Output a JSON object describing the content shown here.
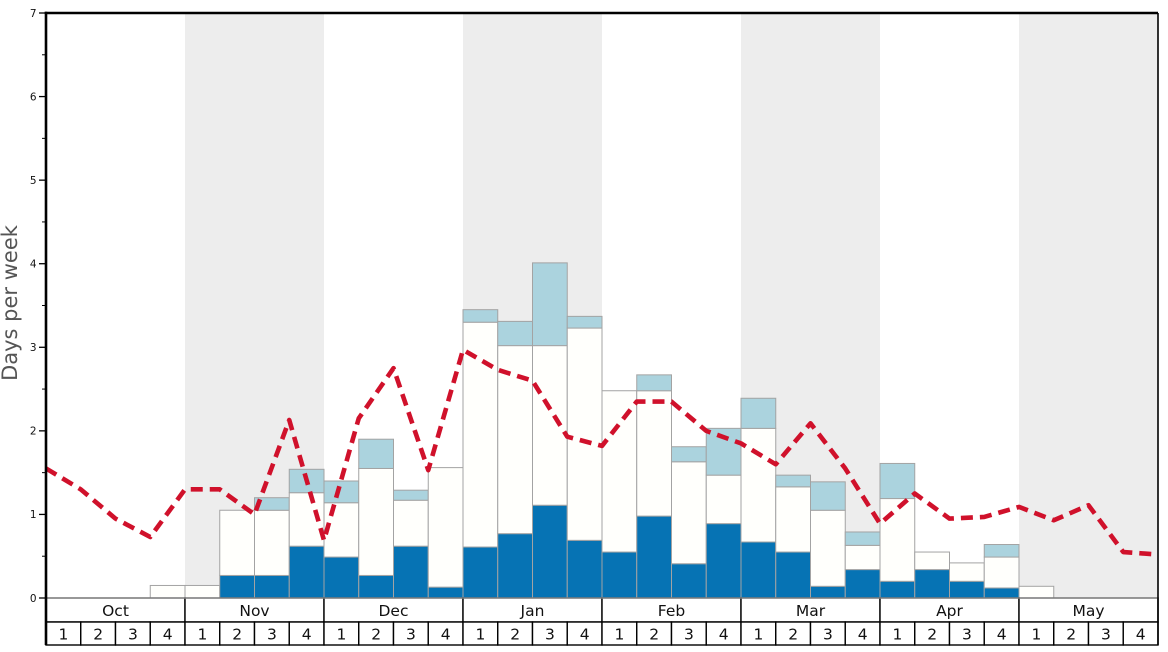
{
  "chart_data": {
    "type": "bar",
    "subtype": "stacked-bars-with-dashed-line-overlay",
    "title": "",
    "xlabel": "",
    "ylabel": "Days per week",
    "ylim": [
      0,
      7
    ],
    "y_major_ticks": [
      0,
      1,
      2,
      3,
      4,
      5,
      6,
      7
    ],
    "y_minor_tick_step": 0.5,
    "grid": "off",
    "legend": "none visible",
    "months": [
      "Oct",
      "Nov",
      "Dec",
      "Jan",
      "Feb",
      "Mar",
      "Apr",
      "May"
    ],
    "week_labels": [
      "1",
      "2",
      "3",
      "4"
    ],
    "shaded_months": [
      "Nov",
      "Jan",
      "Mar",
      "May"
    ],
    "stacked_bars": {
      "description": "One stacked bar per week; segment heights in days per week, stacked bottom-to-top as dark_blue, white, light_blue.",
      "segment_order": [
        "dark_blue",
        "white",
        "light_blue"
      ],
      "weeks": [
        {
          "month": "Oct",
          "week": 1,
          "dark_blue": 0,
          "white": 0,
          "light_blue": 0
        },
        {
          "month": "Oct",
          "week": 2,
          "dark_blue": 0,
          "white": 0,
          "light_blue": 0
        },
        {
          "month": "Oct",
          "week": 3,
          "dark_blue": 0,
          "white": 0,
          "light_blue": 0
        },
        {
          "month": "Oct",
          "week": 4,
          "dark_blue": 0,
          "white": 0.15,
          "light_blue": 0
        },
        {
          "month": "Nov",
          "week": 1,
          "dark_blue": 0,
          "white": 0.15,
          "light_blue": 0
        },
        {
          "month": "Nov",
          "week": 2,
          "dark_blue": 0.27,
          "white": 0.78,
          "light_blue": 0
        },
        {
          "month": "Nov",
          "week": 3,
          "dark_blue": 0.27,
          "white": 0.78,
          "light_blue": 0.15
        },
        {
          "month": "Nov",
          "week": 4,
          "dark_blue": 0.62,
          "white": 0.64,
          "light_blue": 0.28
        },
        {
          "month": "Dec",
          "week": 1,
          "dark_blue": 0.49,
          "white": 0.65,
          "light_blue": 0.26
        },
        {
          "month": "Dec",
          "week": 2,
          "dark_blue": 0.27,
          "white": 1.28,
          "light_blue": 0.35
        },
        {
          "month": "Dec",
          "week": 3,
          "dark_blue": 0.62,
          "white": 0.55,
          "light_blue": 0.12
        },
        {
          "month": "Dec",
          "week": 4,
          "dark_blue": 0.13,
          "white": 1.43,
          "light_blue": 0
        },
        {
          "month": "Jan",
          "week": 1,
          "dark_blue": 0.61,
          "white": 2.69,
          "light_blue": 0.15
        },
        {
          "month": "Jan",
          "week": 2,
          "dark_blue": 0.77,
          "white": 2.25,
          "light_blue": 0.29
        },
        {
          "month": "Jan",
          "week": 3,
          "dark_blue": 1.11,
          "white": 1.91,
          "light_blue": 0.99
        },
        {
          "month": "Jan",
          "week": 4,
          "dark_blue": 0.69,
          "white": 2.54,
          "light_blue": 0.14
        },
        {
          "month": "Feb",
          "week": 1,
          "dark_blue": 0.55,
          "white": 1.93,
          "light_blue": 0
        },
        {
          "month": "Feb",
          "week": 2,
          "dark_blue": 0.98,
          "white": 1.5,
          "light_blue": 0.19
        },
        {
          "month": "Feb",
          "week": 3,
          "dark_blue": 0.41,
          "white": 1.22,
          "light_blue": 0.18
        },
        {
          "month": "Feb",
          "week": 4,
          "dark_blue": 0.89,
          "white": 0.58,
          "light_blue": 0.56
        },
        {
          "month": "Mar",
          "week": 1,
          "dark_blue": 0.67,
          "white": 1.36,
          "light_blue": 0.36
        },
        {
          "month": "Mar",
          "week": 2,
          "dark_blue": 0.55,
          "white": 0.78,
          "light_blue": 0.14
        },
        {
          "month": "Mar",
          "week": 3,
          "dark_blue": 0.14,
          "white": 0.91,
          "light_blue": 0.34
        },
        {
          "month": "Mar",
          "week": 4,
          "dark_blue": 0.34,
          "white": 0.29,
          "light_blue": 0.16
        },
        {
          "month": "Apr",
          "week": 1,
          "dark_blue": 0.2,
          "white": 0.99,
          "light_blue": 0.42
        },
        {
          "month": "Apr",
          "week": 2,
          "dark_blue": 0.34,
          "white": 0.21,
          "light_blue": 0
        },
        {
          "month": "Apr",
          "week": 3,
          "dark_blue": 0.2,
          "white": 0.22,
          "light_blue": 0
        },
        {
          "month": "Apr",
          "week": 4,
          "dark_blue": 0.12,
          "white": 0.37,
          "light_blue": 0.15
        },
        {
          "month": "May",
          "week": 1,
          "dark_blue": 0,
          "white": 0.14,
          "light_blue": 0
        },
        {
          "month": "May",
          "week": 2,
          "dark_blue": 0,
          "white": 0,
          "light_blue": 0
        },
        {
          "month": "May",
          "week": 3,
          "dark_blue": 0,
          "white": 0,
          "light_blue": 0
        },
        {
          "month": "May",
          "week": 4,
          "dark_blue": 0,
          "white": 0,
          "light_blue": 0
        }
      ]
    },
    "red_dashed_line": {
      "description": "Red dashed overlay line; one vertex at each week boundary from the start of Oct week 1 through the end of May week 4 (33 points).",
      "values": [
        1.55,
        1.3,
        0.95,
        0.73,
        1.3,
        1.3,
        1.0,
        2.13,
        0.69,
        2.15,
        2.75,
        1.53,
        2.97,
        2.73,
        2.6,
        1.93,
        1.82,
        2.35,
        2.35,
        2.0,
        1.85,
        1.6,
        2.09,
        1.55,
        0.89,
        1.25,
        0.95,
        0.97,
        1.09,
        0.93,
        1.11,
        0.55,
        0.52
      ]
    },
    "colors": {
      "dark_blue": "#0673b4",
      "light_blue": "#abd3de",
      "bar_white": "#fffffc",
      "bar_border": "#a3a3a3",
      "red_line": "#d0112b",
      "month_band_gray": "#ededed",
      "axis_black": "#000000",
      "zero_line_gray": "#999999",
      "axis_title_gray": "#555555",
      "label_black": "#111111"
    }
  }
}
